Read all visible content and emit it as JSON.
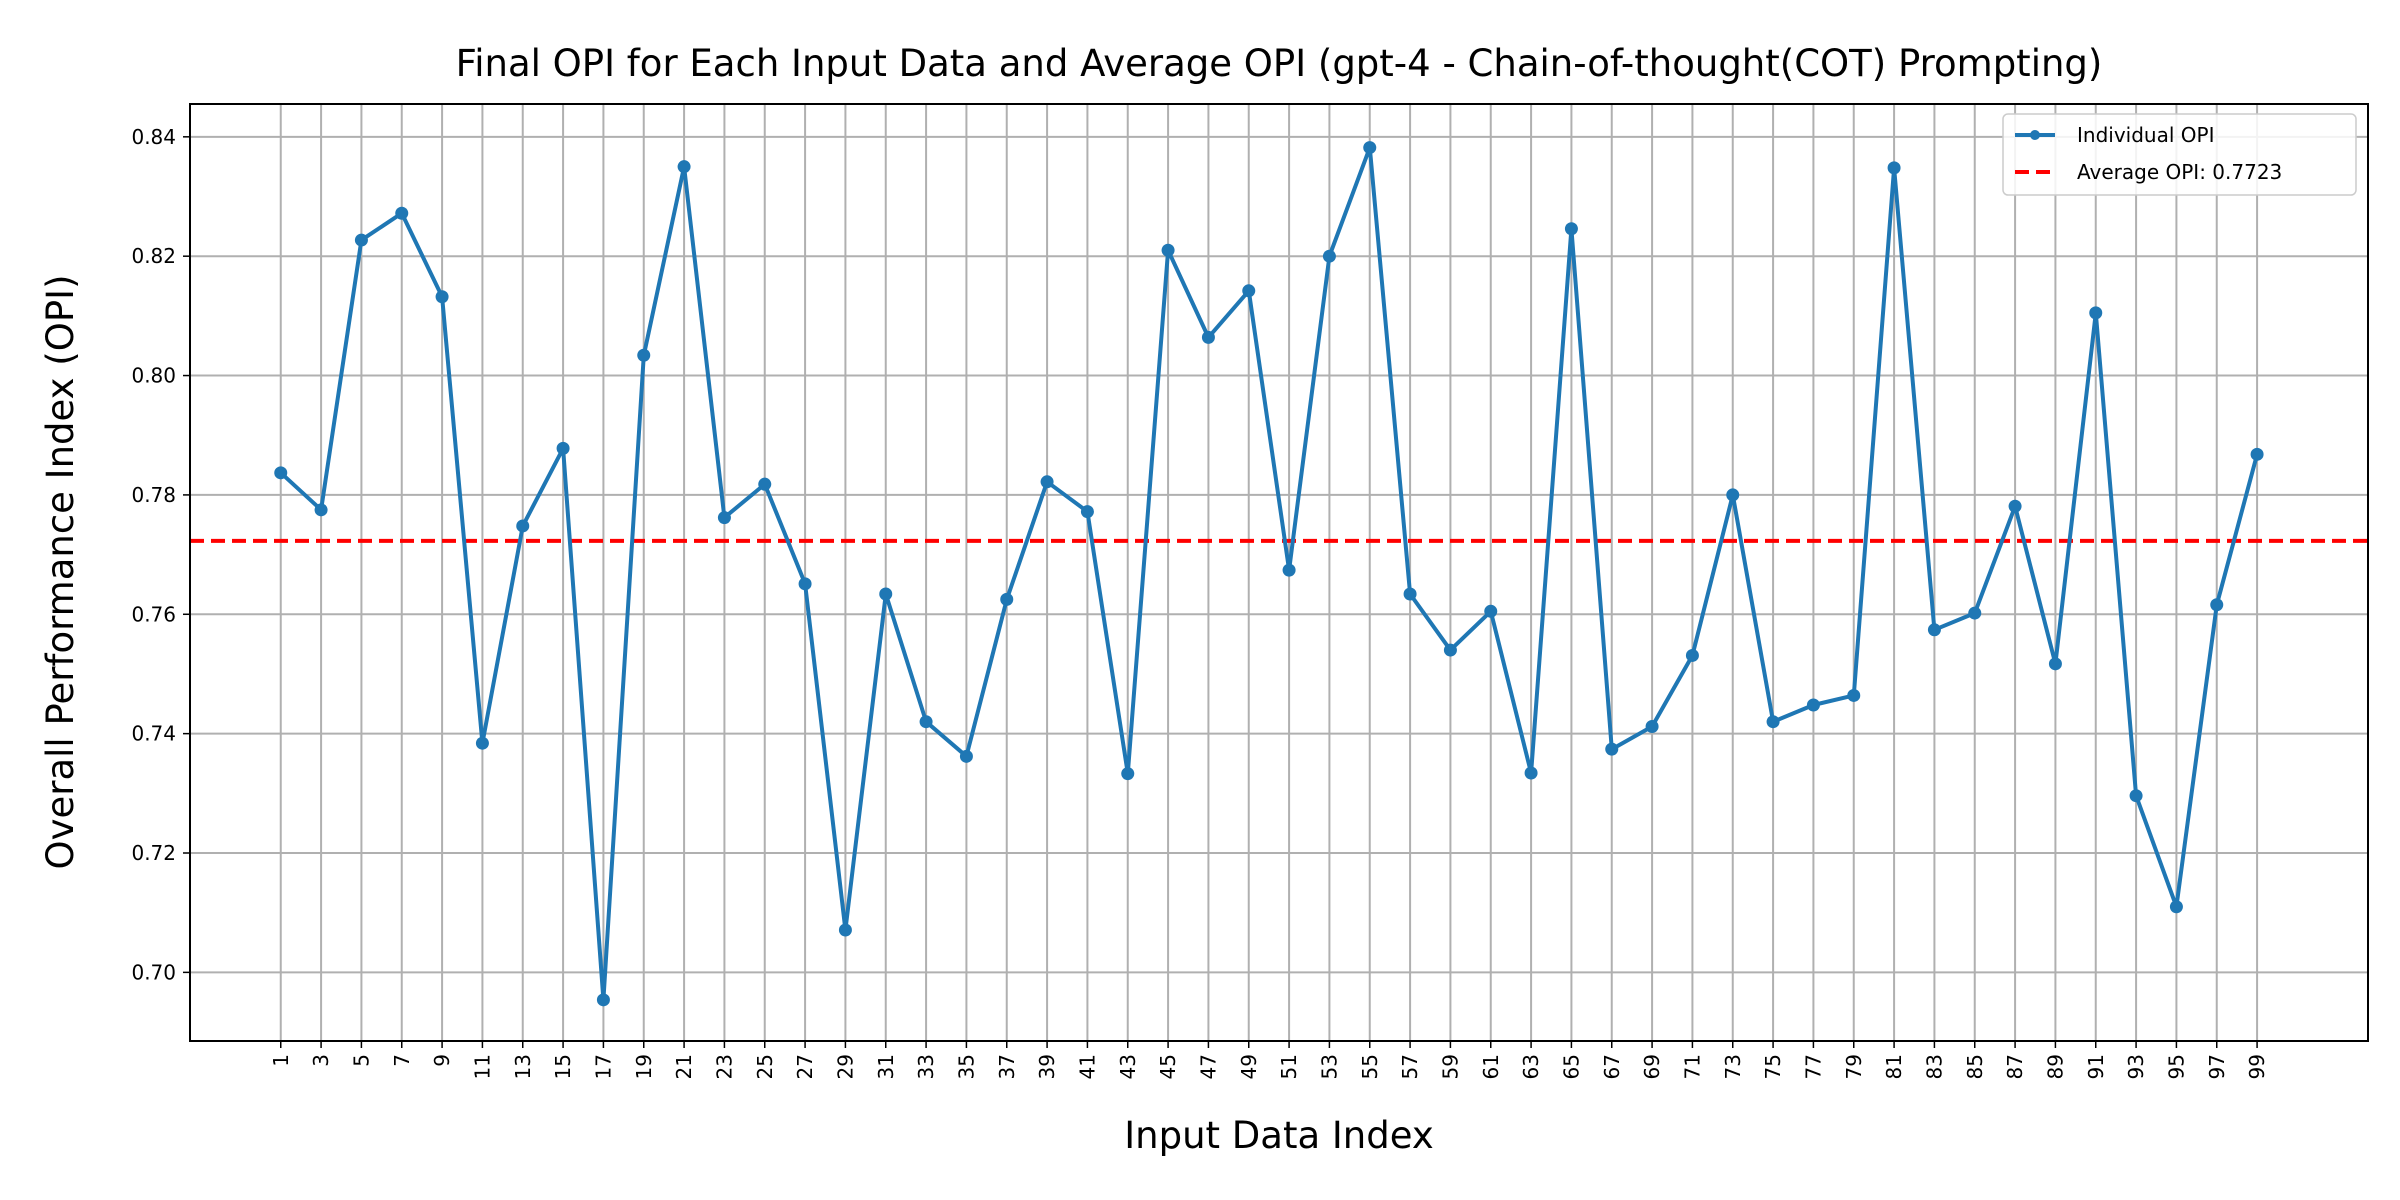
{
  "chart_data": {
    "type": "line",
    "title": "Final OPI for Each Input Data and Average OPI (gpt-4 - Chain-of-thought(COT) Prompting)",
    "xlabel": "Input Data Index",
    "ylabel": "Overall Performance Index (OPI)",
    "xlim": [
      -3.5,
      104.5
    ],
    "ylim": [
      0.6885,
      0.8455
    ],
    "yticks": [
      0.7,
      0.72,
      0.74,
      0.76,
      0.78,
      0.8,
      0.82,
      0.84
    ],
    "ytick_labels": [
      "0.70",
      "0.72",
      "0.74",
      "0.76",
      "0.78",
      "0.80",
      "0.82",
      "0.84"
    ],
    "xticks": [
      1,
      3,
      5,
      7,
      9,
      11,
      13,
      15,
      17,
      19,
      21,
      23,
      25,
      27,
      29,
      31,
      33,
      35,
      37,
      39,
      41,
      43,
      45,
      47,
      49,
      51,
      53,
      55,
      57,
      59,
      61,
      63,
      65,
      67,
      69,
      71,
      73,
      75,
      77,
      79,
      81,
      83,
      85,
      87,
      89,
      91,
      93,
      95,
      97,
      99
    ],
    "xtick_labels": [
      "1",
      "3",
      "5",
      "7",
      "9",
      "11",
      "13",
      "15",
      "17",
      "19",
      "21",
      "23",
      "25",
      "27",
      "29",
      "31",
      "33",
      "35",
      "37",
      "39",
      "41",
      "43",
      "45",
      "47",
      "49",
      "51",
      "53",
      "55",
      "57",
      "59",
      "61",
      "63",
      "65",
      "67",
      "69",
      "71",
      "73",
      "75",
      "77",
      "79",
      "81",
      "83",
      "85",
      "87",
      "89",
      "91",
      "93",
      "95",
      "97",
      "99"
    ],
    "grid": true,
    "legend_position": "top-right",
    "series": [
      {
        "name": "Individual OPI",
        "color": "#1f77b4",
        "style": "solid-with-markers",
        "x": [
          1,
          3,
          5,
          7,
          9,
          11,
          13,
          15,
          17,
          19,
          21,
          23,
          25,
          27,
          29,
          31,
          33,
          35,
          37,
          39,
          41,
          43,
          45,
          47,
          49,
          51,
          53,
          55,
          57,
          59,
          61,
          63,
          65,
          67,
          69,
          71,
          73,
          75,
          77,
          79,
          81,
          83,
          85,
          87,
          89,
          91,
          93,
          95,
          97,
          99
        ],
        "values": [
          0.7837,
          0.7775,
          0.8227,
          0.8272,
          0.8132,
          0.7384,
          0.7748,
          0.7878,
          0.6954,
          0.8034,
          0.835,
          0.7762,
          0.7818,
          0.7651,
          0.7071,
          0.7634,
          0.742,
          0.7362,
          0.7625,
          0.7822,
          0.7772,
          0.7333,
          0.821,
          0.8064,
          0.8142,
          0.7674,
          0.82,
          0.8382,
          0.7634,
          0.754,
          0.7605,
          0.7334,
          0.8246,
          0.7374,
          0.7412,
          0.7531,
          0.78,
          0.742,
          0.7448,
          0.7464,
          0.8348,
          0.7574,
          0.7602,
          0.7781,
          0.7517,
          0.8105,
          0.7296,
          0.711,
          0.7616,
          0.7868
        ]
      },
      {
        "name": "Average OPI: 0.7723",
        "color": "#ff0000",
        "style": "dashed",
        "value": 0.7723
      }
    ]
  }
}
